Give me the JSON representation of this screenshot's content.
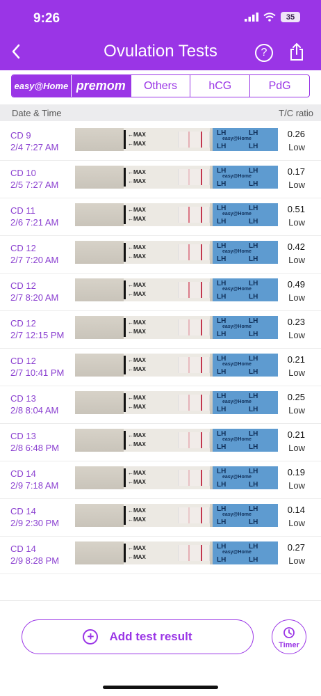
{
  "status_bar": {
    "time": "9:26",
    "battery": "35"
  },
  "nav": {
    "title": "Ovulation Tests"
  },
  "tabs": [
    {
      "label": "easy@Home"
    },
    {
      "label": "premom"
    },
    {
      "label": "Others"
    },
    {
      "label": "hCG"
    },
    {
      "label": "PdG"
    }
  ],
  "columns": {
    "left": "Date & Time",
    "right": "T/C ratio"
  },
  "strip_labels": {
    "max": "←MAX",
    "brand": "LH",
    "mark": "easy@Home"
  },
  "tests": [
    {
      "cd": "CD 9",
      "datetime": "2/4 7:27 AM",
      "ratio": "0.26",
      "level": "Low",
      "tline": 0.26
    },
    {
      "cd": "CD 10",
      "datetime": "2/5 7:27 AM",
      "ratio": "0.17",
      "level": "Low",
      "tline": 0.17
    },
    {
      "cd": "CD 11",
      "datetime": "2/6 7:21 AM",
      "ratio": "0.51",
      "level": "Low",
      "tline": 0.51
    },
    {
      "cd": "CD 12",
      "datetime": "2/7 7:20 AM",
      "ratio": "0.42",
      "level": "Low",
      "tline": 0.42
    },
    {
      "cd": "CD 12",
      "datetime": "2/7 8:20 AM",
      "ratio": "0.49",
      "level": "Low",
      "tline": 0.49
    },
    {
      "cd": "CD 12",
      "datetime": "2/7 12:15 PM",
      "ratio": "0.23",
      "level": "Low",
      "tline": 0.23
    },
    {
      "cd": "CD 12",
      "datetime": "2/7 10:41 PM",
      "ratio": "0.21",
      "level": "Low",
      "tline": 0.21
    },
    {
      "cd": "CD 13",
      "datetime": "2/8 8:04 AM",
      "ratio": "0.25",
      "level": "Low",
      "tline": 0.25
    },
    {
      "cd": "CD 13",
      "datetime": "2/8 6:48 PM",
      "ratio": "0.21",
      "level": "Low",
      "tline": 0.21
    },
    {
      "cd": "CD 14",
      "datetime": "2/9 7:18 AM",
      "ratio": "0.19",
      "level": "Low",
      "tline": 0.19
    },
    {
      "cd": "CD 14",
      "datetime": "2/9 2:30 PM",
      "ratio": "0.14",
      "level": "Low",
      "tline": 0.14
    },
    {
      "cd": "CD 14",
      "datetime": "2/9 8:28 PM",
      "ratio": "0.27",
      "level": "Low",
      "tline": 0.27
    }
  ],
  "actions": {
    "add_label": "Add test result",
    "timer_label": "Timer"
  },
  "colors": {
    "accent": "#9a35e6",
    "header_bg": "#9a35e6",
    "row_text": "#8a3fd0"
  }
}
